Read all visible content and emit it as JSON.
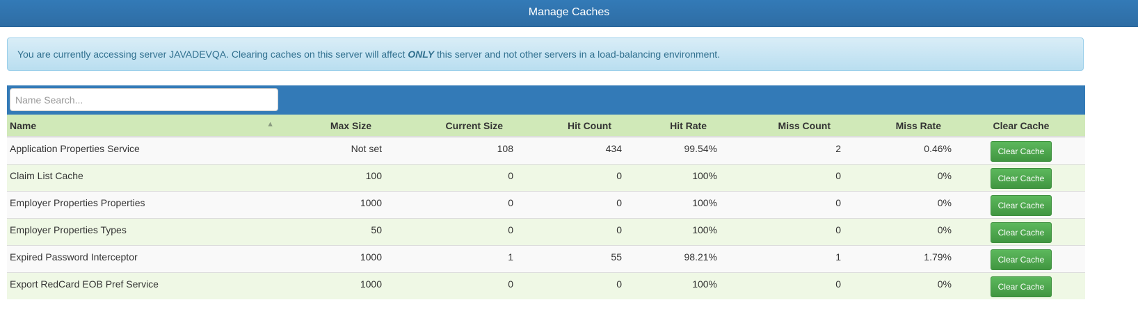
{
  "header": {
    "title": "Manage Caches"
  },
  "alert": {
    "prefix": "You are currently accessing server JAVADEVQA. Clearing caches on this server will affect ",
    "emphasis": "ONLY",
    "suffix": " this server and not other servers in a load-balancing environment."
  },
  "search": {
    "placeholder": "Name Search...",
    "value": ""
  },
  "table": {
    "columns": [
      "Name",
      "Max Size",
      "Current Size",
      "Hit Count",
      "Hit Rate",
      "Miss Count",
      "Miss Rate",
      "Clear Cache"
    ],
    "sort": {
      "column": "Name",
      "direction": "ascending",
      "icon": "chevron-up-icon"
    },
    "rows": [
      {
        "name": "Application Properties Service",
        "max": "Not set",
        "current": "108",
        "hits": "434",
        "hit_rate": "99.54%",
        "misses": "2",
        "miss_rate": "0.46%",
        "action": "Clear Cache"
      },
      {
        "name": "Claim List Cache",
        "max": "100",
        "current": "0",
        "hits": "0",
        "hit_rate": "100%",
        "misses": "0",
        "miss_rate": "0%",
        "action": "Clear Cache"
      },
      {
        "name": "Employer Properties Properties",
        "max": "1000",
        "current": "0",
        "hits": "0",
        "hit_rate": "100%",
        "misses": "0",
        "miss_rate": "0%",
        "action": "Clear Cache"
      },
      {
        "name": "Employer Properties Types",
        "max": "50",
        "current": "0",
        "hits": "0",
        "hit_rate": "100%",
        "misses": "0",
        "miss_rate": "0%",
        "action": "Clear Cache"
      },
      {
        "name": "Expired Password Interceptor",
        "max": "1000",
        "current": "1",
        "hits": "55",
        "hit_rate": "98.21%",
        "misses": "1",
        "miss_rate": "1.79%",
        "action": "Clear Cache"
      },
      {
        "name": "Export RedCard EOB Pref Service",
        "max": "1000",
        "current": "0",
        "hits": "0",
        "hit_rate": "100%",
        "misses": "0",
        "miss_rate": "0%",
        "action": "Clear Cache"
      }
    ]
  }
}
